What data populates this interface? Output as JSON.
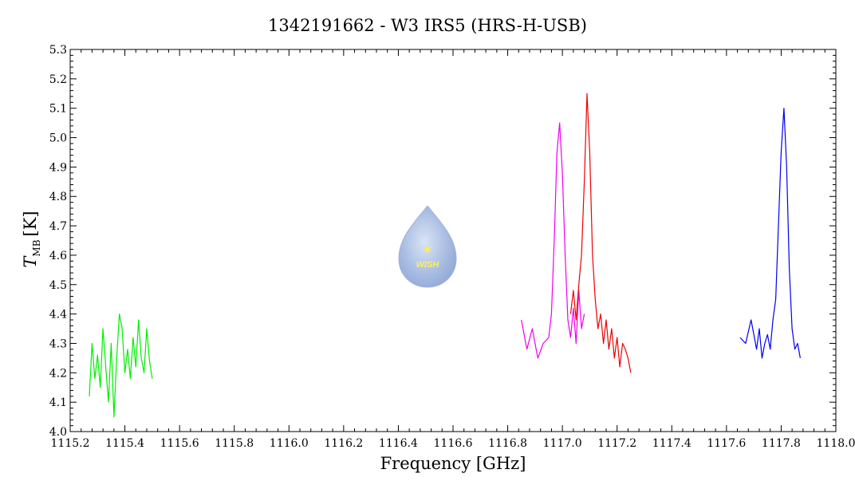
{
  "chart_data": {
    "type": "line",
    "title": "1342191662 - W3 IRS5 (HRS-H-USB)",
    "xlabel": "Frequency [GHz]",
    "ylabel_main": "T",
    "ylabel_sub": "MB",
    "ylabel_unit": "[K]",
    "xlim": [
      1115.2,
      1118.0
    ],
    "ylim": [
      4.0,
      5.3
    ],
    "x_ticks": [
      1115.2,
      1115.4,
      1115.6,
      1115.8,
      1116.0,
      1116.2,
      1116.4,
      1116.6,
      1116.8,
      1117.0,
      1117.2,
      1117.4,
      1117.6,
      1117.8,
      1118.0
    ],
    "x_tick_labels": [
      "1115.2",
      "1115.4",
      "1115.6",
      "1115.8",
      "1116.0",
      "1116.2",
      "1116.4",
      "1116.6",
      "1116.8",
      "1117.0",
      "1117.2",
      "1117.4",
      "1117.6",
      "1117.8",
      "1118.0"
    ],
    "y_ticks": [
      4.0,
      4.1,
      4.2,
      4.3,
      4.4,
      4.5,
      4.6,
      4.7,
      4.8,
      4.9,
      5.0,
      5.1,
      5.2,
      5.3
    ],
    "y_tick_labels": [
      "4.0",
      "4.1",
      "4.2",
      "4.3",
      "4.4",
      "4.5",
      "4.6",
      "4.7",
      "4.8",
      "4.9",
      "5.0",
      "5.1",
      "5.2",
      "5.3"
    ],
    "grid": false,
    "logo_text": "WISH",
    "series": [
      {
        "color": "#00ee00",
        "x": [
          1115.27,
          1115.28,
          1115.29,
          1115.3,
          1115.31,
          1115.32,
          1115.33,
          1115.34,
          1115.35,
          1115.36,
          1115.37,
          1115.38,
          1115.39,
          1115.4,
          1115.41,
          1115.42,
          1115.43,
          1115.44,
          1115.45,
          1115.46,
          1115.47,
          1115.48,
          1115.49,
          1115.5
        ],
        "y": [
          4.12,
          4.3,
          4.18,
          4.26,
          4.15,
          4.35,
          4.22,
          4.1,
          4.3,
          4.05,
          4.25,
          4.4,
          4.35,
          4.2,
          4.28,
          4.18,
          4.32,
          4.22,
          4.38,
          4.25,
          4.2,
          4.35,
          4.24,
          4.18
        ]
      },
      {
        "color": "#ee00ee",
        "x": [
          1116.85,
          1116.87,
          1116.89,
          1116.91,
          1116.93,
          1116.95,
          1116.96,
          1116.97,
          1116.98,
          1116.99,
          1117.0,
          1117.01,
          1117.02,
          1117.03,
          1117.04,
          1117.05,
          1117.06,
          1117.07,
          1117.08
        ],
        "y": [
          4.38,
          4.28,
          4.35,
          4.25,
          4.3,
          4.32,
          4.4,
          4.65,
          4.95,
          5.05,
          4.88,
          4.6,
          4.38,
          4.32,
          4.42,
          4.3,
          4.48,
          4.35,
          4.4
        ]
      },
      {
        "color": "#ee0000",
        "x": [
          1117.03,
          1117.04,
          1117.05,
          1117.06,
          1117.07,
          1117.08,
          1117.09,
          1117.1,
          1117.11,
          1117.12,
          1117.13,
          1117.14,
          1117.15,
          1117.16,
          1117.17,
          1117.18,
          1117.19,
          1117.2,
          1117.21,
          1117.22,
          1117.23,
          1117.24,
          1117.25
        ],
        "y": [
          4.4,
          4.48,
          4.38,
          4.5,
          4.6,
          4.85,
          5.15,
          4.95,
          4.6,
          4.45,
          4.35,
          4.4,
          4.3,
          4.38,
          4.28,
          4.35,
          4.25,
          4.32,
          4.22,
          4.3,
          4.28,
          4.25,
          4.2
        ]
      },
      {
        "color": "#0000ee",
        "x": [
          1117.65,
          1117.67,
          1117.69,
          1117.71,
          1117.72,
          1117.73,
          1117.74,
          1117.75,
          1117.76,
          1117.77,
          1117.78,
          1117.79,
          1117.8,
          1117.81,
          1117.82,
          1117.83,
          1117.84,
          1117.85,
          1117.86,
          1117.87
        ],
        "y": [
          4.32,
          4.3,
          4.38,
          4.28,
          4.35,
          4.25,
          4.3,
          4.33,
          4.28,
          4.38,
          4.45,
          4.7,
          4.95,
          5.1,
          4.9,
          4.55,
          4.35,
          4.28,
          4.3,
          4.25
        ]
      }
    ]
  }
}
